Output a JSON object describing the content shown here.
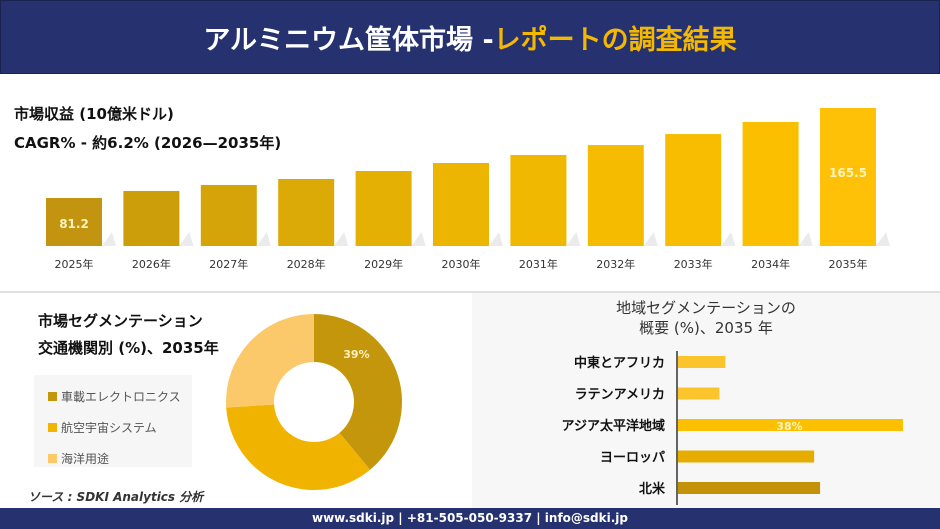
{
  "header": {
    "title_main": "アルミニウム筐体市場 -",
    "title_accent": "レポートの調査結果"
  },
  "colors": {
    "navy": "#263270",
    "accent": "#f5b800"
  },
  "revenue": {
    "title": "市場収益 (10億米ドル)",
    "cagr": "CAGR% - 約6.2% (2026—2035年)"
  },
  "segment": {
    "title1": "市場セグメンテーション",
    "title2": "交通機関別 (%)、2035年"
  },
  "source": "ソース : SDKI Analytics 分析",
  "region": {
    "title1": "地域セグメンテーションの",
    "title2": "概要 (%)、2035 年"
  },
  "footer": "www.sdki.jp | +81-505-050-9337 | info@sdki.jp",
  "chart_data": [
    {
      "type": "bar",
      "categories": [
        "2025年",
        "2026年",
        "2027年",
        "2028年",
        "2029年",
        "2030年",
        "2031年",
        "2032年",
        "2033年",
        "2034年",
        "2035年"
      ],
      "values": [
        81.2,
        87.8,
        93.4,
        99.0,
        106.5,
        114.0,
        121.5,
        130.8,
        141.1,
        152.4,
        165.5
      ],
      "data_labels": {
        "0": "81.2",
        "10": "165.5"
      },
      "colors": [
        "#c39410",
        "#cc9e0a",
        "#d4a408",
        "#dcaa06",
        "#e4b004",
        "#ecb502",
        "#f0b800",
        "#f5bb00",
        "#f8bd00",
        "#fbbf00",
        "#ffc107"
      ]
    },
    {
      "type": "pie",
      "subtype": "donut",
      "categories": [
        "車載エレクトロニクス",
        "航空宇宙システム",
        "海洋用途"
      ],
      "values": [
        39,
        35,
        26
      ],
      "colors": [
        "#c4960c",
        "#f0b400",
        "#fcc96a"
      ],
      "data_labels": [
        "39%",
        "",
        ""
      ]
    },
    {
      "type": "bar",
      "orientation": "horizontal",
      "categories": [
        "中東とアフリカ",
        "ラテンアメリカ",
        "アジア太平洋地域",
        "ヨーロッパ",
        "北米"
      ],
      "values": [
        8,
        7,
        38,
        23,
        24
      ],
      "data_labels": [
        "",
        "",
        "38%",
        "",
        ""
      ],
      "colors": [
        "#fcc42c",
        "#fcc42c",
        "#fcc000",
        "#e6ad00",
        "#c4920a"
      ]
    }
  ]
}
